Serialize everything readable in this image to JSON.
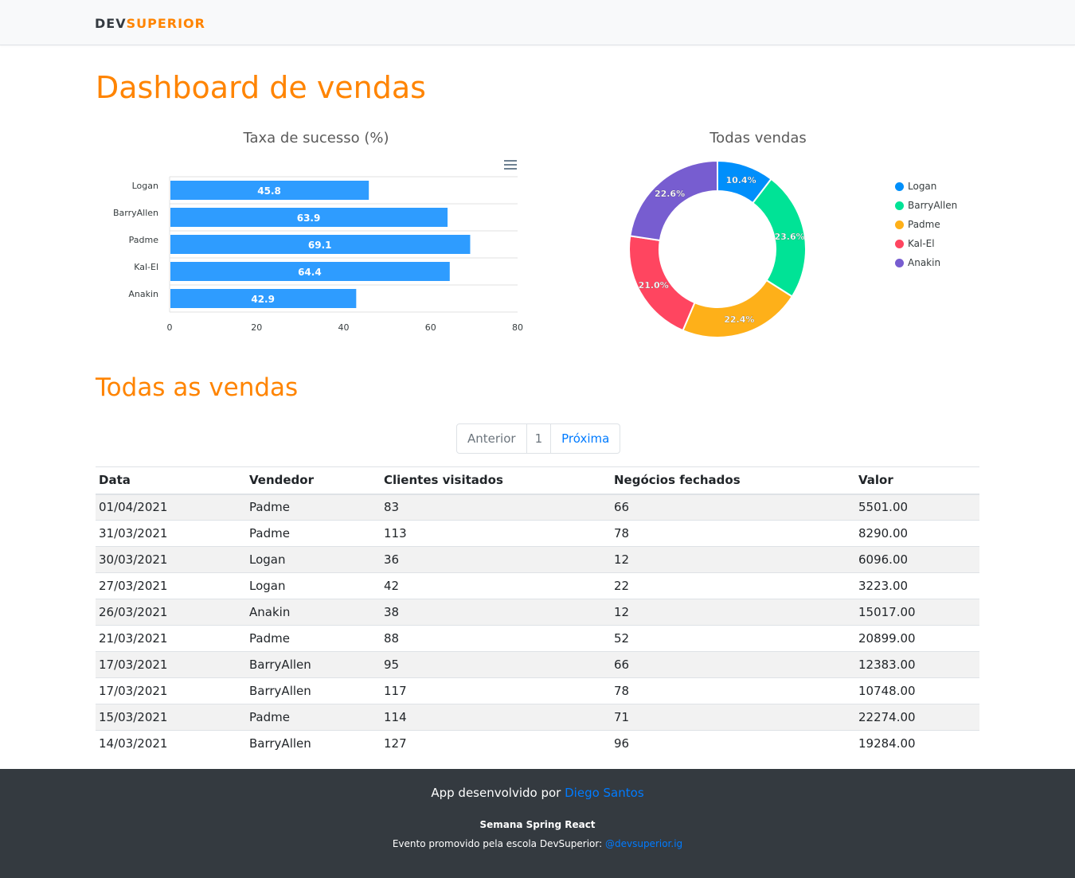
{
  "brand": {
    "part1": "DEV",
    "part2": "SUPERIOR"
  },
  "page_title": "Dashboard de vendas",
  "section_title": "Todas as vendas",
  "bar_chart": {
    "title": "Taxa de sucesso (%)",
    "menu_icon": "hamburger-menu-icon",
    "color": "#2e9cff"
  },
  "donut_chart": {
    "title": "Todas vendas",
    "colors": [
      "#008ffb",
      "#00e396",
      "#feb019",
      "#ff4560",
      "#775dd0"
    ]
  },
  "chart_data": [
    {
      "type": "bar",
      "orientation": "horizontal",
      "title": "Taxa de sucesso (%)",
      "categories": [
        "Logan",
        "BarryAllen",
        "Padme",
        "Kal-El",
        "Anakin"
      ],
      "values": [
        45.8,
        63.9,
        69.1,
        64.4,
        42.9
      ],
      "data_labels": [
        "45.8",
        "63.9",
        "69.1",
        "64.4",
        "42.9"
      ],
      "xlim": [
        0,
        80
      ],
      "xticks": [
        "0",
        "20",
        "40",
        "60",
        "80"
      ],
      "grid": true
    },
    {
      "type": "pie",
      "subtype": "donut",
      "title": "Todas vendas",
      "labels": [
        "Logan",
        "BarryAllen",
        "Padme",
        "Kal-El",
        "Anakin"
      ],
      "values": [
        10.4,
        23.6,
        22.4,
        21.0,
        22.6
      ],
      "data_labels": [
        "10.4%",
        "23.6%",
        "22.4%",
        "21.0%",
        "22.6%"
      ],
      "legend": "right"
    }
  ],
  "pagination": {
    "prev": "Anterior",
    "current": "1",
    "next": "Próxima"
  },
  "table": {
    "headers": [
      "Data",
      "Vendedor",
      "Clientes visitados",
      "Negócios fechados",
      "Valor"
    ],
    "rows": [
      [
        "01/04/2021",
        "Padme",
        "83",
        "66",
        "5501.00"
      ],
      [
        "31/03/2021",
        "Padme",
        "113",
        "78",
        "8290.00"
      ],
      [
        "30/03/2021",
        "Logan",
        "36",
        "12",
        "6096.00"
      ],
      [
        "27/03/2021",
        "Logan",
        "42",
        "22",
        "3223.00"
      ],
      [
        "26/03/2021",
        "Anakin",
        "38",
        "12",
        "15017.00"
      ],
      [
        "21/03/2021",
        "Padme",
        "88",
        "52",
        "20899.00"
      ],
      [
        "17/03/2021",
        "BarryAllen",
        "95",
        "66",
        "12383.00"
      ],
      [
        "17/03/2021",
        "BarryAllen",
        "117",
        "78",
        "10748.00"
      ],
      [
        "15/03/2021",
        "Padme",
        "114",
        "71",
        "22274.00"
      ],
      [
        "14/03/2021",
        "BarryAllen",
        "127",
        "96",
        "19284.00"
      ]
    ]
  },
  "footer": {
    "credit_text": "App desenvolvido por",
    "credit_link": "Diego Santos",
    "event_title": "Semana Spring React",
    "event_text": "Evento promovido pela escola DevSuperior:",
    "event_link": "@devsuperior.ig"
  }
}
